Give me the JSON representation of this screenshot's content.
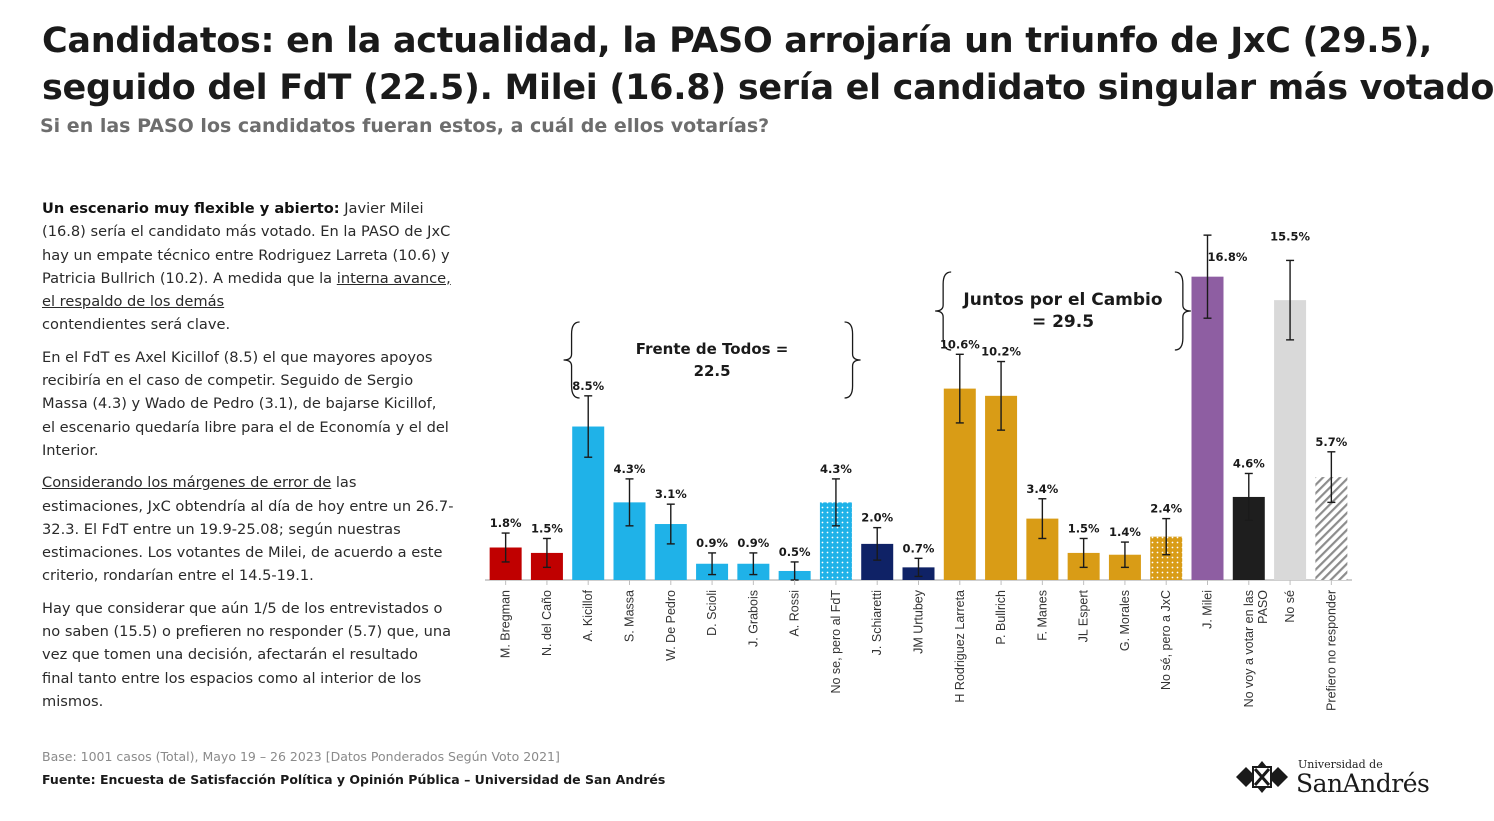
{
  "title": {
    "line1": "Candidatos: en la actualidad, la PASO arrojaría un triunfo de JxC (29.5),",
    "line2": "seguido del FdT (22.5). Milei (16.8) sería el candidato singular más votado"
  },
  "subtitle": "Si en las PASO los candidatos fueran estos, a cuál de ellos votarías?",
  "commentary": {
    "p1_bold": "Un escenario muy flexible y abierto:",
    "p1_a": " Javier Milei (16.8) sería el candidato más votado. En la PASO de JxC hay un empate técnico entre Rodriguez Larreta (10.6) y Patricia Bullrich (10.2). A medida que la ",
    "p1_u": "interna avance, el respaldo de los demás ",
    "p1_b": "contendientes será clave.",
    "p2": "En el FdT es Axel Kicillof (8.5) el que mayores apoyos recibiría en el caso de competir. Seguido de Sergio Massa (4.3) y Wado de Pedro (3.1), de bajarse Kicillof, el escenario quedaría libre para el de Economía y el del Interior.",
    "p3_u": "Considerando los márgenes de error de",
    "p3_a": " las estimaciones, JxC obtendría al día de hoy entre un 26.7-32.3. El FdT entre un 19.9-25.08; según nuestras estimaciones. Los votantes de Milei, de acuerdo a este criterio, rondarían entre el 14.5-19.1.",
    "p4": "Hay que considerar que aún 1/5 de los entrevistados o no saben (15.5) o prefieren no responder (5.7) que, una vez que tomen una decisión, afectarán el resultado final tanto entre los espacios como al interior de los mismos."
  },
  "footer": {
    "base": "Base: 1001 casos (Total), Mayo 19 – 26 2023 [Datos Ponderados Según Voto 2021]",
    "source": "Fuente: Encuesta de Satisfacción Política y Opinión Pública – Universidad de San Andrés"
  },
  "logo": {
    "line1": "Universidad de",
    "line2": "SanAndrés"
  },
  "colors": {
    "red": "#c00000",
    "lightblue": "#1fb2e8",
    "navy": "#0f2266",
    "gold": "#d99c16",
    "purple": "#8e5ea2",
    "black": "#1e1e1e",
    "grey": "#d9d9d9",
    "hatch": "#8c8c8c"
  },
  "chart_data": {
    "type": "bar",
    "title": "Si en las PASO los candidatos fueran estos, a cuál de ellos votarías?",
    "xlabel": "",
    "ylabel": "",
    "ylim": [
      0,
      18
    ],
    "grid": false,
    "categories": [
      "M. Bregman",
      "N. del Caño",
      "A. Kicillof",
      "S. Massa",
      "W. De Pedro",
      "D. Scioli",
      "J. Grabois",
      "A. Rossi",
      "No se, pero al FdT",
      "J. Schiaretti",
      "JM Urtubey",
      "H Rodriguez Larreta",
      "P. Bullrich",
      "F. Manes",
      "JL Espert",
      "G. Morales",
      "No sé, pero a JxC",
      "J. Milei",
      "No voy a votar en las PASO",
      "No sé",
      "Prefiero no responder"
    ],
    "values": [
      1.8,
      1.5,
      8.5,
      4.3,
      3.1,
      0.9,
      0.9,
      0.5,
      4.3,
      2.0,
      0.7,
      10.6,
      10.2,
      3.4,
      1.5,
      1.4,
      2.4,
      16.8,
      4.6,
      15.5,
      5.7
    ],
    "labels": [
      "1.8%",
      "1.5%",
      "8.5%",
      "4.3%",
      "3.1%",
      "0.9%",
      "0.9%",
      "0.5%",
      "4.3%",
      "2.0%",
      "0.7%",
      "10.6%",
      "10.2%",
      "3.4%",
      "1.5%",
      "1.4%",
      "2.4%",
      "16.8%",
      "4.6%",
      "15.5%",
      "5.7%"
    ],
    "error_margin": [
      0.8,
      0.8,
      1.7,
      1.3,
      1.1,
      0.6,
      0.6,
      0.5,
      1.3,
      0.9,
      0.5,
      1.9,
      1.9,
      1.1,
      0.8,
      0.7,
      1.0,
      2.3,
      1.3,
      2.2,
      1.4
    ],
    "bar_colors": [
      "red",
      "red",
      "lightblue",
      "lightblue",
      "lightblue",
      "lightblue",
      "lightblue",
      "lightblue",
      "lightblue-dotted",
      "navy",
      "navy",
      "gold",
      "gold",
      "gold",
      "gold",
      "gold",
      "gold-dotted",
      "purple",
      "black",
      "grey",
      "hatch"
    ],
    "groups": [
      {
        "name": "Frente de Todos",
        "label_line1": "Frente de Todos =",
        "label_line2": "22.5",
        "from": 2,
        "to": 8
      },
      {
        "name": "Juntos por el Cambio",
        "label_line1": "Juntos por el Cambio",
        "label_line2": "= 29.5",
        "from": 11,
        "to": 16
      }
    ]
  }
}
